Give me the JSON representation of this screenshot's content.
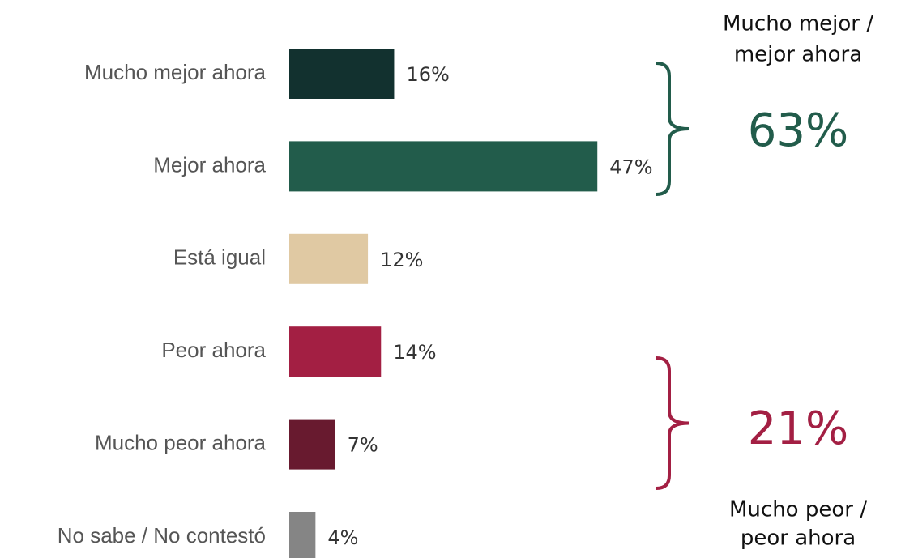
{
  "chart_data": {
    "type": "bar",
    "orientation": "horizontal",
    "categories": [
      "Mucho mejor ahora",
      "Mejor ahora",
      "Está igual",
      "Peor ahora",
      "Mucho peor ahora",
      "No sabe / No contestó"
    ],
    "values": [
      16,
      47,
      12,
      14,
      7,
      4
    ],
    "value_labels": [
      "16%",
      "47%",
      "12%",
      "14%",
      "7%",
      "4%"
    ],
    "colors": [
      "#12312f",
      "#225c4b",
      "#e0c9a3",
      "#a31f43",
      "#681a2f",
      "#858585"
    ],
    "annotations": [
      {
        "label_lines": [
          "Mucho mejor /",
          "mejor ahora"
        ],
        "value": 63,
        "value_label": "63%",
        "color": "#225c4b"
      },
      {
        "label_lines": [
          "Mucho peor /",
          "peor ahora"
        ],
        "value": 21,
        "value_label": "21%",
        "color": "#a31f43"
      }
    ]
  }
}
